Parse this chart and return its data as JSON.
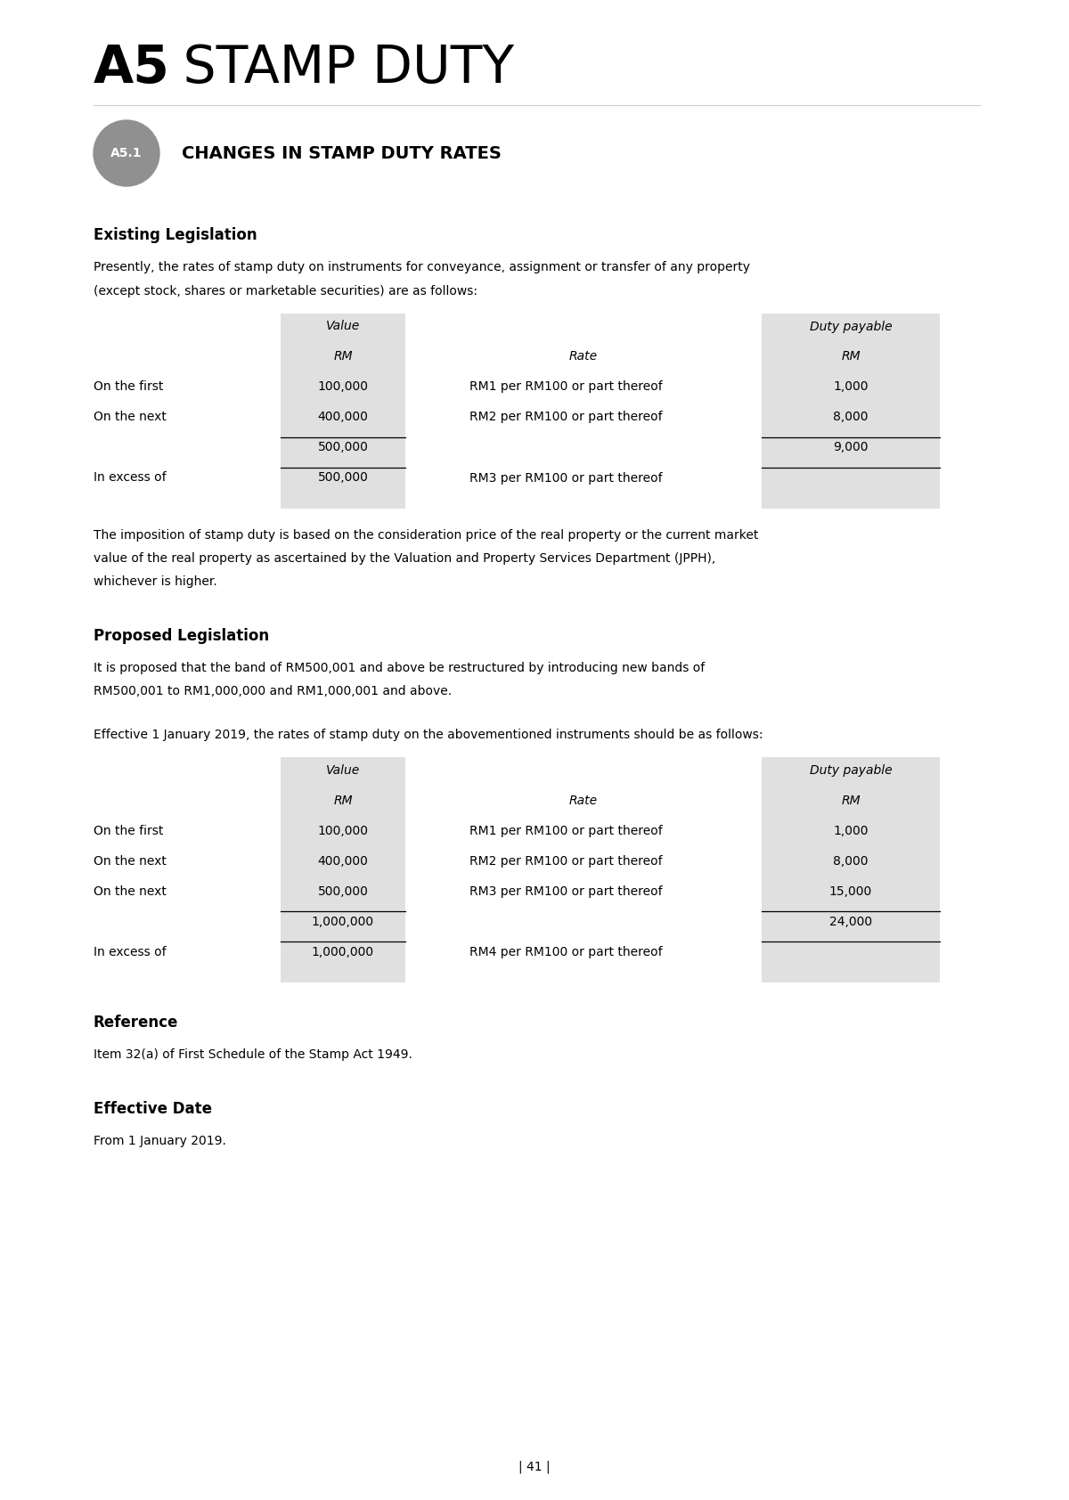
{
  "page_title_bold": "A5",
  "page_title_regular": " STAMP DUTY",
  "section_badge": "A5.1",
  "section_title": "CHANGES IN STAMP DUTY RATES",
  "subsection1_title": "Existing Legislation",
  "para1_line1": "Presently, the rates of stamp duty on instruments for conveyance, assignment or transfer of any property",
  "para1_line2": "(except stock, shares or marketable securities) are as follows:",
  "table1_rows": [
    [
      "On the first",
      "100,000",
      "RM1 per RM100 or part thereof",
      "1,000"
    ],
    [
      "On the next",
      "400,000",
      "RM2 per RM100 or part thereof",
      "8,000"
    ],
    [
      "",
      "500,000",
      "",
      "9,000"
    ],
    [
      "In excess of",
      "500,000",
      "RM3 per RM100 or part thereof",
      ""
    ]
  ],
  "para2_line1": "The imposition of stamp duty is based on the consideration price of the real property or the current market",
  "para2_line2": "value of the real property as ascertained by the Valuation and Property Services Department (JPPH),",
  "para2_line3": "whichever is higher.",
  "subsection2_title": "Proposed Legislation",
  "para3_line1": "It is proposed that the band of RM500,001 and above be restructured by introducing new bands of",
  "para3_line2": "RM500,001 to RM1,000,000 and RM1,000,001 and above.",
  "para4": "Effective 1 January 2019, the rates of stamp duty on the abovementioned instruments should be as follows:",
  "table2_rows": [
    [
      "On the first",
      "100,000",
      "RM1 per RM100 or part thereof",
      "1,000"
    ],
    [
      "On the next",
      "400,000",
      "RM2 per RM100 or part thereof",
      "8,000"
    ],
    [
      "On the next",
      "500,000",
      "RM3 per RM100 or part thereof",
      "15,000"
    ],
    [
      "",
      "1,000,000",
      "",
      "24,000"
    ],
    [
      "In excess of",
      "1,000,000",
      "RM4 per RM100 or part thereof",
      ""
    ]
  ],
  "ref_title": "Reference",
  "ref_text": "Item 32(a) of First Schedule of the Stamp Act 1949.",
  "eff_title": "Effective Date",
  "eff_text": "From 1 January 2019.",
  "page_number": "| 41 |",
  "bg_color": "#ffffff",
  "table_bg": "#e0e0e0",
  "badge_color": "#909090",
  "text_color": "#000000"
}
